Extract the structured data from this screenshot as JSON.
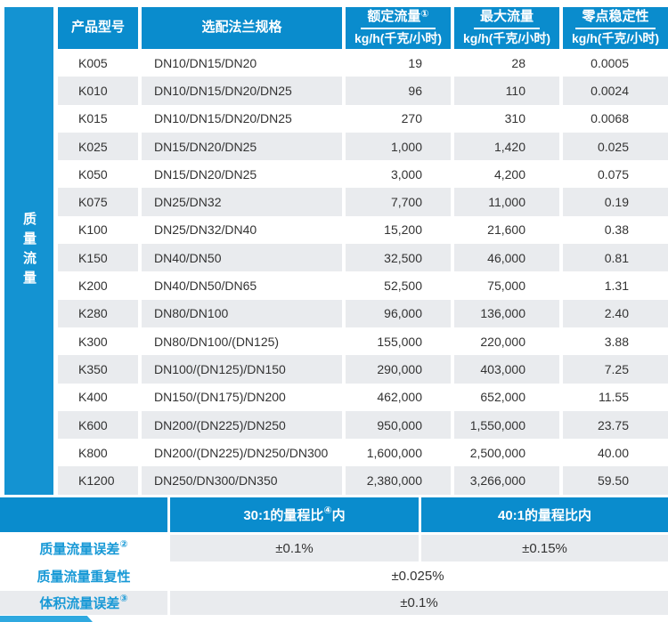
{
  "colors": {
    "header_blue": "#0a8ccd",
    "sidebar_blue": "#1493d2",
    "accent_blue": "#2fa9e0",
    "stripe_gray": "#e9ebee",
    "label_blue": "#1899d6",
    "body_text": "#333333"
  },
  "sidebar": {
    "label": "质量流量"
  },
  "table": {
    "columns": [
      {
        "title": "产品型号",
        "sup": "",
        "unit": ""
      },
      {
        "title": "选配法兰规格",
        "sup": "",
        "unit": ""
      },
      {
        "title": "额定流量",
        "sup": "①",
        "unit": "kg/h(千克/小时)"
      },
      {
        "title": "最大流量",
        "sup": "",
        "unit": "kg/h(千克/小时)"
      },
      {
        "title": "零点稳定性",
        "sup": "",
        "unit": "kg/h(千克/小时)"
      }
    ],
    "rows": [
      [
        "K005",
        "DN10/DN15/DN20",
        "19",
        "28",
        "0.0005"
      ],
      [
        "K010",
        "DN10/DN15/DN20/DN25",
        "96",
        "110",
        "0.0024"
      ],
      [
        "K015",
        "DN10/DN15/DN20/DN25",
        "270",
        "310",
        "0.0068"
      ],
      [
        "K025",
        "DN15/DN20/DN25",
        "1,000",
        "1,420",
        "0.025"
      ],
      [
        "K050",
        "DN15/DN20/DN25",
        "3,000",
        "4,200",
        "0.075"
      ],
      [
        "K075",
        "DN25/DN32",
        "7,700",
        "11,000",
        "0.19"
      ],
      [
        "K100",
        "DN25/DN32/DN40",
        "15,200",
        "21,600",
        "0.38"
      ],
      [
        "K150",
        "DN40/DN50",
        "32,500",
        "46,000",
        "0.81"
      ],
      [
        "K200",
        "DN40/DN50/DN65",
        "52,500",
        "75,000",
        "1.31"
      ],
      [
        "K280",
        "DN80/DN100",
        "96,000",
        "136,000",
        "2.40"
      ],
      [
        "K300",
        "DN80/DN100/(DN125)",
        "155,000",
        "220,000",
        "3.88"
      ],
      [
        "K350",
        "DN100/(DN125)/DN150",
        "290,000",
        "403,000",
        "7.25"
      ],
      [
        "K400",
        "DN150/(DN175)/DN200",
        "462,000",
        "652,000",
        "11.55"
      ],
      [
        "K600",
        "DN200/(DN225)/DN250",
        "950,000",
        "1,550,000",
        "23.75"
      ],
      [
        "K800",
        "DN200/(DN225)/DN250/DN300",
        "1,600,000",
        "2,500,000",
        "40.00"
      ],
      [
        "K1200",
        "DN250/DN300/DN350",
        "2,380,000",
        "3,266,000",
        "59.50"
      ]
    ]
  },
  "spec": {
    "range_cols": [
      {
        "pre": "30:1的量程比",
        "sup": "④",
        "post": "内"
      },
      {
        "pre": "40:1的量程比内",
        "sup": "",
        "post": ""
      }
    ],
    "rows": [
      {
        "label": "质量流量误差",
        "sup": "②",
        "values": [
          "±0.1%",
          "±0.15%"
        ]
      },
      {
        "label": "质量流量重复性",
        "sup": "",
        "values": [
          "±0.025%"
        ]
      },
      {
        "label": "体积流量误差",
        "sup": "③",
        "values": [
          "±0.1%"
        ]
      }
    ]
  }
}
